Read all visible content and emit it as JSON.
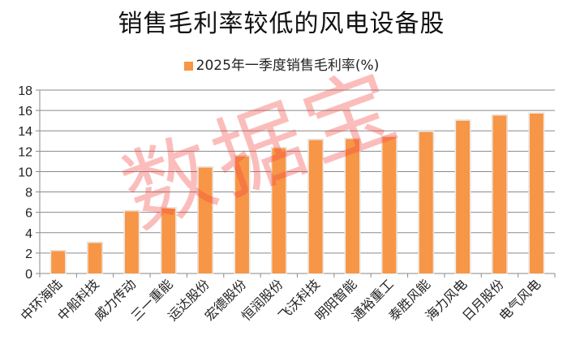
{
  "chart_data": {
    "type": "bar",
    "title": "销售毛利率较低的风电设备股",
    "legend": "2025年一季度销售毛利率(%)",
    "legend_position": "top",
    "categories": [
      "中环海陆",
      "中船科技",
      "威力传动",
      "三一重能",
      "运达股份",
      "宏德股份",
      "恒润股份",
      "飞沃科技",
      "明阳智能",
      "通裕重工",
      "泰胜风能",
      "海力风电",
      "日月股份",
      "电气风电"
    ],
    "values": [
      2.2,
      3.0,
      6.1,
      6.4,
      10.4,
      11.5,
      12.3,
      13.1,
      13.2,
      13.4,
      13.9,
      15.0,
      15.5,
      15.7
    ],
    "ylim": [
      0,
      18
    ],
    "yticks": [
      0,
      2,
      4,
      6,
      8,
      10,
      12,
      14,
      16,
      18
    ],
    "grid": true,
    "xlabel": "",
    "ylabel": "",
    "bar_color": "#f79646"
  },
  "watermark": "数据宝"
}
